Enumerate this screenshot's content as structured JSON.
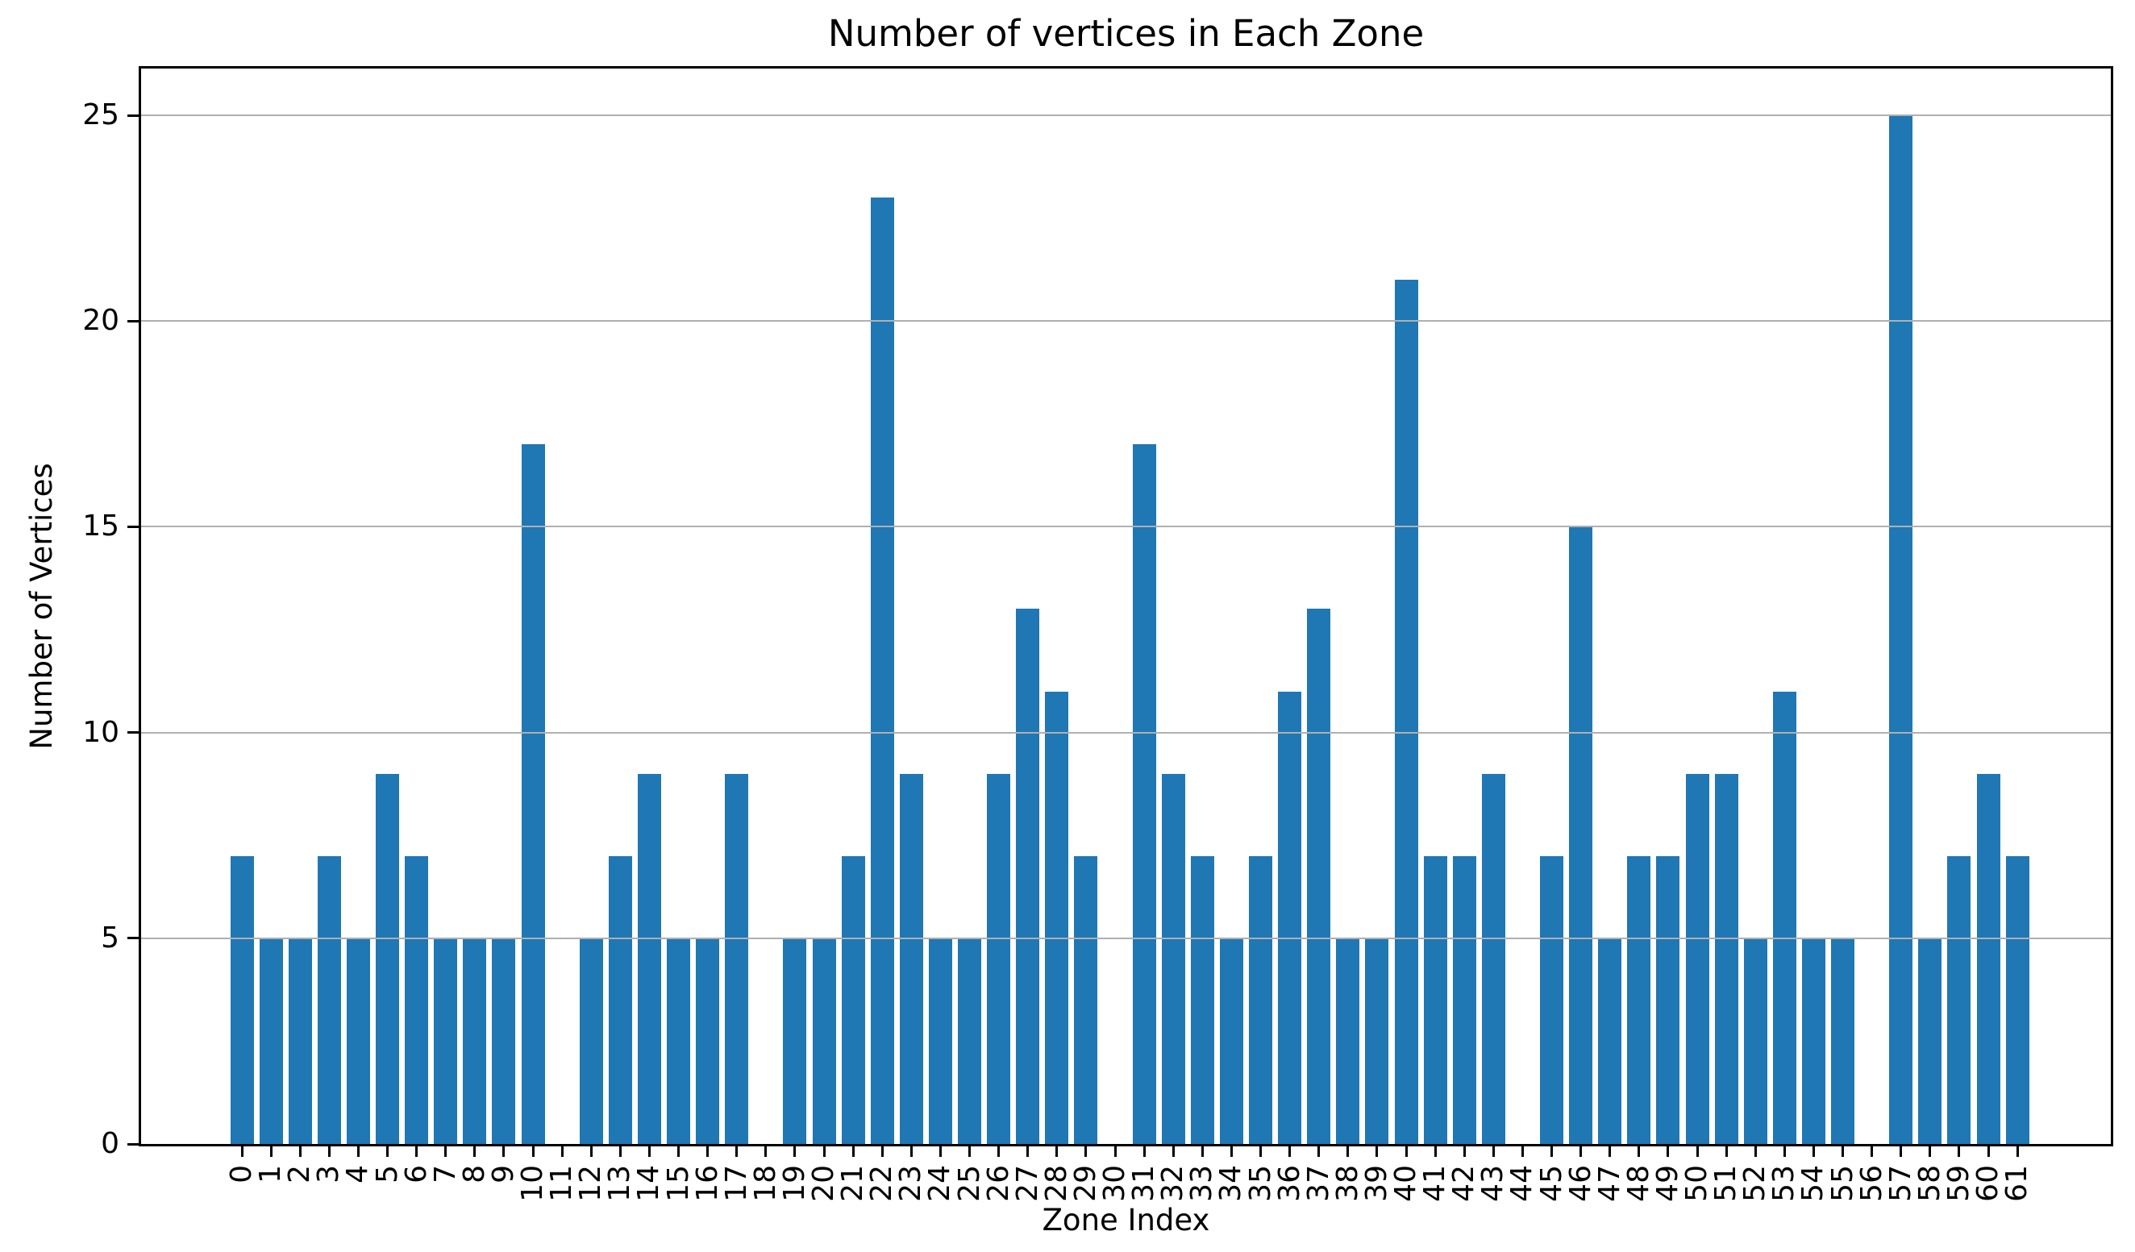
{
  "chart_data": {
    "type": "bar",
    "title": "Number of vertices in Each Zone",
    "xlabel": "Zone Index",
    "ylabel": "Number of Vertices",
    "categories": [
      "0",
      "1",
      "2",
      "3",
      "4",
      "5",
      "6",
      "7",
      "8",
      "9",
      "10",
      "11",
      "12",
      "13",
      "14",
      "15",
      "16",
      "17",
      "18",
      "19",
      "20",
      "21",
      "22",
      "23",
      "24",
      "25",
      "26",
      "27",
      "28",
      "29",
      "30",
      "31",
      "32",
      "33",
      "34",
      "35",
      "36",
      "37",
      "38",
      "39",
      "40",
      "41",
      "42",
      "43",
      "44",
      "45",
      "46",
      "47",
      "48",
      "49",
      "50",
      "51",
      "52",
      "53",
      "54",
      "55",
      "56",
      "57",
      "58",
      "59",
      "60",
      "61"
    ],
    "values": [
      7,
      5,
      5,
      7,
      5,
      9,
      7,
      5,
      5,
      5,
      17,
      0,
      5,
      7,
      9,
      5,
      5,
      9,
      0,
      5,
      5,
      7,
      23,
      9,
      5,
      5,
      9,
      13,
      11,
      7,
      0,
      17,
      9,
      7,
      5,
      7,
      11,
      13,
      5,
      5,
      21,
      7,
      7,
      9,
      0,
      7,
      15,
      5,
      7,
      7,
      9,
      9,
      5,
      11,
      5,
      5,
      0,
      25,
      5,
      7,
      9,
      7
    ],
    "yticks": [
      0,
      5,
      10,
      15,
      20,
      25
    ],
    "ylim": [
      0,
      26.1
    ],
    "grid": "horizontal-over-bars",
    "legend": "none",
    "colors": {
      "bar": "#1f77b4",
      "grid": "#b0b0b0",
      "axis": "#000000",
      "background": "#ffffff",
      "text": "#000000"
    }
  }
}
